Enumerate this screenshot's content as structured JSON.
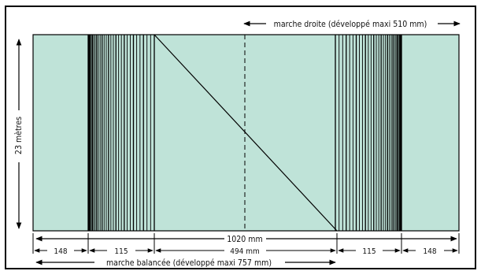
{
  "labels": {
    "top_right": "marche droite (développé maxi 510 mm)",
    "height": "23 mètres",
    "total_width": "1020 mm",
    "segment_left_outer": "148",
    "segment_left_inner": "115",
    "segment_middle": "494 mm",
    "segment_right_inner": "115",
    "segment_right_outer": "148",
    "bottom": "marche balancée (développé maxi 757 mm)"
  },
  "colors": {
    "fill": "#bfe3d8",
    "line": "#000000"
  }
}
